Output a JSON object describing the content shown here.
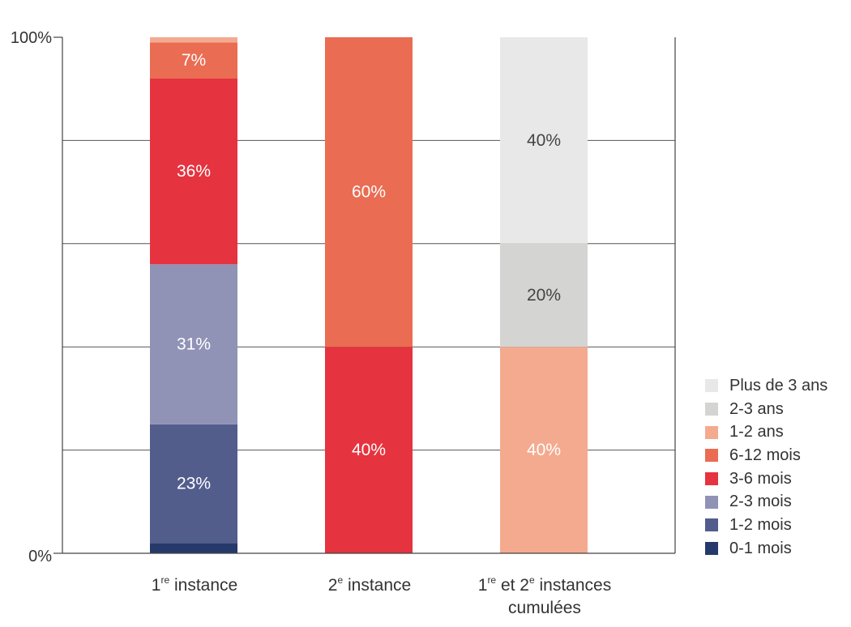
{
  "chart_data": {
    "type": "bar",
    "stacked": true,
    "y_tick_labels": [
      "0%",
      "100%"
    ],
    "ylim": [
      0,
      100
    ],
    "grid": true,
    "legend_position": "right",
    "categories": [
      {
        "pre1": "1",
        "sup1": "re",
        "post1": " instance",
        "line2": ""
      },
      {
        "pre1": "2",
        "sup1": "e",
        "post1": " instance",
        "line2": ""
      },
      {
        "pre1": "1",
        "sup1": "re",
        "post1": " et 2",
        "sup2": "e",
        "post2": " instances",
        "line2": "cumulées"
      }
    ],
    "series": [
      {
        "name": "0-1 mois",
        "color": "#253a6b",
        "values": [
          2,
          0,
          0
        ],
        "labels": [
          "",
          "",
          ""
        ]
      },
      {
        "name": "1-2 mois",
        "color": "#535d8c",
        "values": [
          23,
          0,
          0
        ],
        "labels": [
          "23%",
          "",
          ""
        ]
      },
      {
        "name": "2-3 mois",
        "color": "#9093b5",
        "values": [
          31,
          0,
          0
        ],
        "labels": [
          "31%",
          "",
          ""
        ]
      },
      {
        "name": "3-6 mois",
        "color": "#e5333f",
        "values": [
          36,
          40,
          0
        ],
        "labels": [
          "36%",
          "40%",
          ""
        ]
      },
      {
        "name": "6-12 mois",
        "color": "#ea6c52",
        "values": [
          7,
          60,
          0
        ],
        "labels": [
          "7%",
          "60%",
          ""
        ]
      },
      {
        "name": "1-2 ans",
        "color": "#f4aa8f",
        "values": [
          1,
          0,
          40
        ],
        "labels": [
          "",
          "",
          "40%"
        ]
      },
      {
        "name": "2-3 ans",
        "color": "#d4d4d3",
        "values": [
          0,
          0,
          20
        ],
        "labels": [
          "",
          "",
          "20%"
        ]
      },
      {
        "name": "Plus de 3 ans",
        "color": "#e8e8e8",
        "values": [
          0,
          0,
          40
        ],
        "labels": [
          "",
          "",
          "40%"
        ]
      }
    ]
  }
}
